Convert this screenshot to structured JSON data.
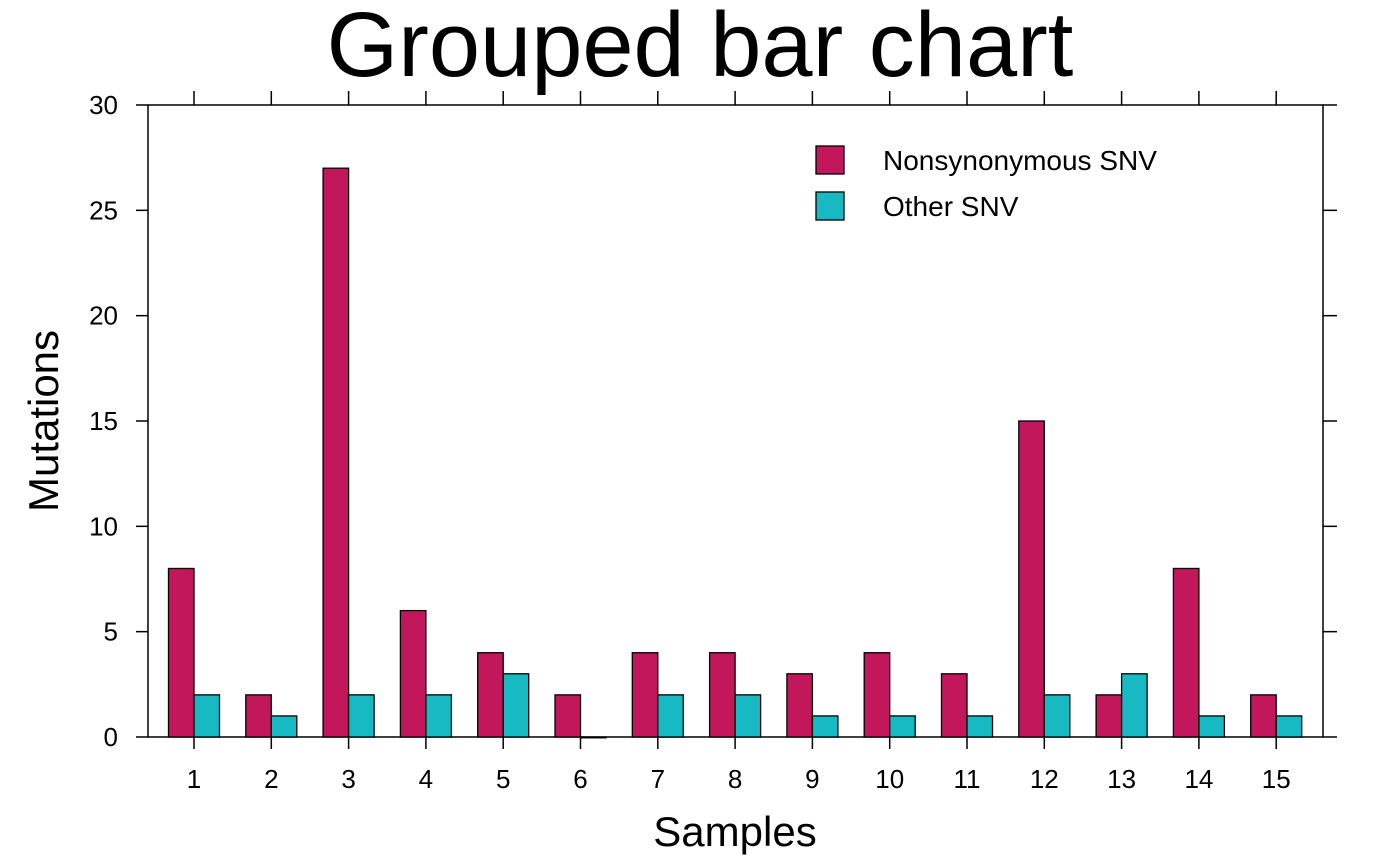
{
  "chart_data": {
    "type": "bar",
    "title": "Grouped bar chart",
    "xlabel": "Samples",
    "ylabel": "Mutations",
    "categories": [
      "1",
      "2",
      "3",
      "4",
      "5",
      "6",
      "7",
      "8",
      "9",
      "10",
      "11",
      "12",
      "13",
      "14",
      "15"
    ],
    "series": [
      {
        "name": "Nonsynonymous SNV",
        "color": "#C2185B",
        "values": [
          8,
          2,
          27,
          6,
          4,
          2,
          4,
          4,
          3,
          4,
          3,
          15,
          2,
          8,
          2
        ]
      },
      {
        "name": "Other SNV",
        "color": "#17BAC2",
        "values": [
          2,
          1,
          2,
          2,
          3,
          0,
          2,
          2,
          1,
          1,
          1,
          2,
          3,
          1,
          1
        ]
      }
    ],
    "ylim": [
      0,
      30
    ],
    "yticks": [
      0,
      5,
      10,
      15,
      20,
      25,
      30
    ],
    "grid": false,
    "legend_position": "top-right"
  }
}
